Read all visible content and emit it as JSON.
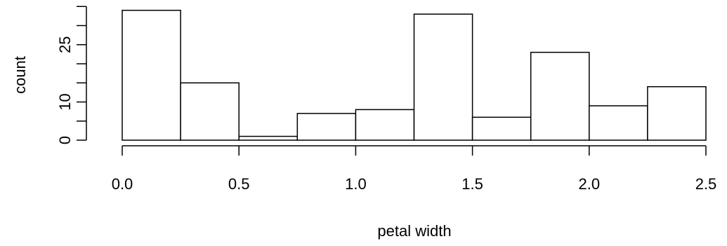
{
  "chart_data": {
    "type": "bar",
    "xlabel": "petal width",
    "ylabel": "count",
    "bins": [
      {
        "x0": 0.0,
        "x1": 0.25,
        "count": 34
      },
      {
        "x0": 0.25,
        "x1": 0.5,
        "count": 15
      },
      {
        "x0": 0.5,
        "x1": 0.75,
        "count": 1
      },
      {
        "x0": 0.75,
        "x1": 1.0,
        "count": 7
      },
      {
        "x0": 1.0,
        "x1": 1.25,
        "count": 8
      },
      {
        "x0": 1.25,
        "x1": 1.5,
        "count": 33
      },
      {
        "x0": 1.5,
        "x1": 1.75,
        "count": 6
      },
      {
        "x0": 1.75,
        "x1": 2.0,
        "count": 23
      },
      {
        "x0": 2.0,
        "x1": 2.25,
        "count": 9
      },
      {
        "x0": 2.25,
        "x1": 2.5,
        "count": 14
      }
    ],
    "x_ticks": [
      {
        "value": 0.0,
        "label": "0.0"
      },
      {
        "value": 0.5,
        "label": "0.5"
      },
      {
        "value": 1.0,
        "label": "1.0"
      },
      {
        "value": 1.5,
        "label": "1.5"
      },
      {
        "value": 2.0,
        "label": "2.0"
      },
      {
        "value": 2.5,
        "label": "2.5"
      }
    ],
    "y_ticks": [
      0,
      5,
      10,
      15,
      20,
      25,
      30,
      35
    ],
    "y_tick_labels": [
      {
        "value": 0,
        "label": "0"
      },
      {
        "value": 10,
        "label": "10"
      },
      {
        "value": 25,
        "label": "25"
      }
    ],
    "xlim": [
      0,
      2.5
    ],
    "ylim": [
      0,
      35
    ],
    "grid": false,
    "bar_fill": "#ffffff",
    "bar_stroke": "#000000"
  }
}
